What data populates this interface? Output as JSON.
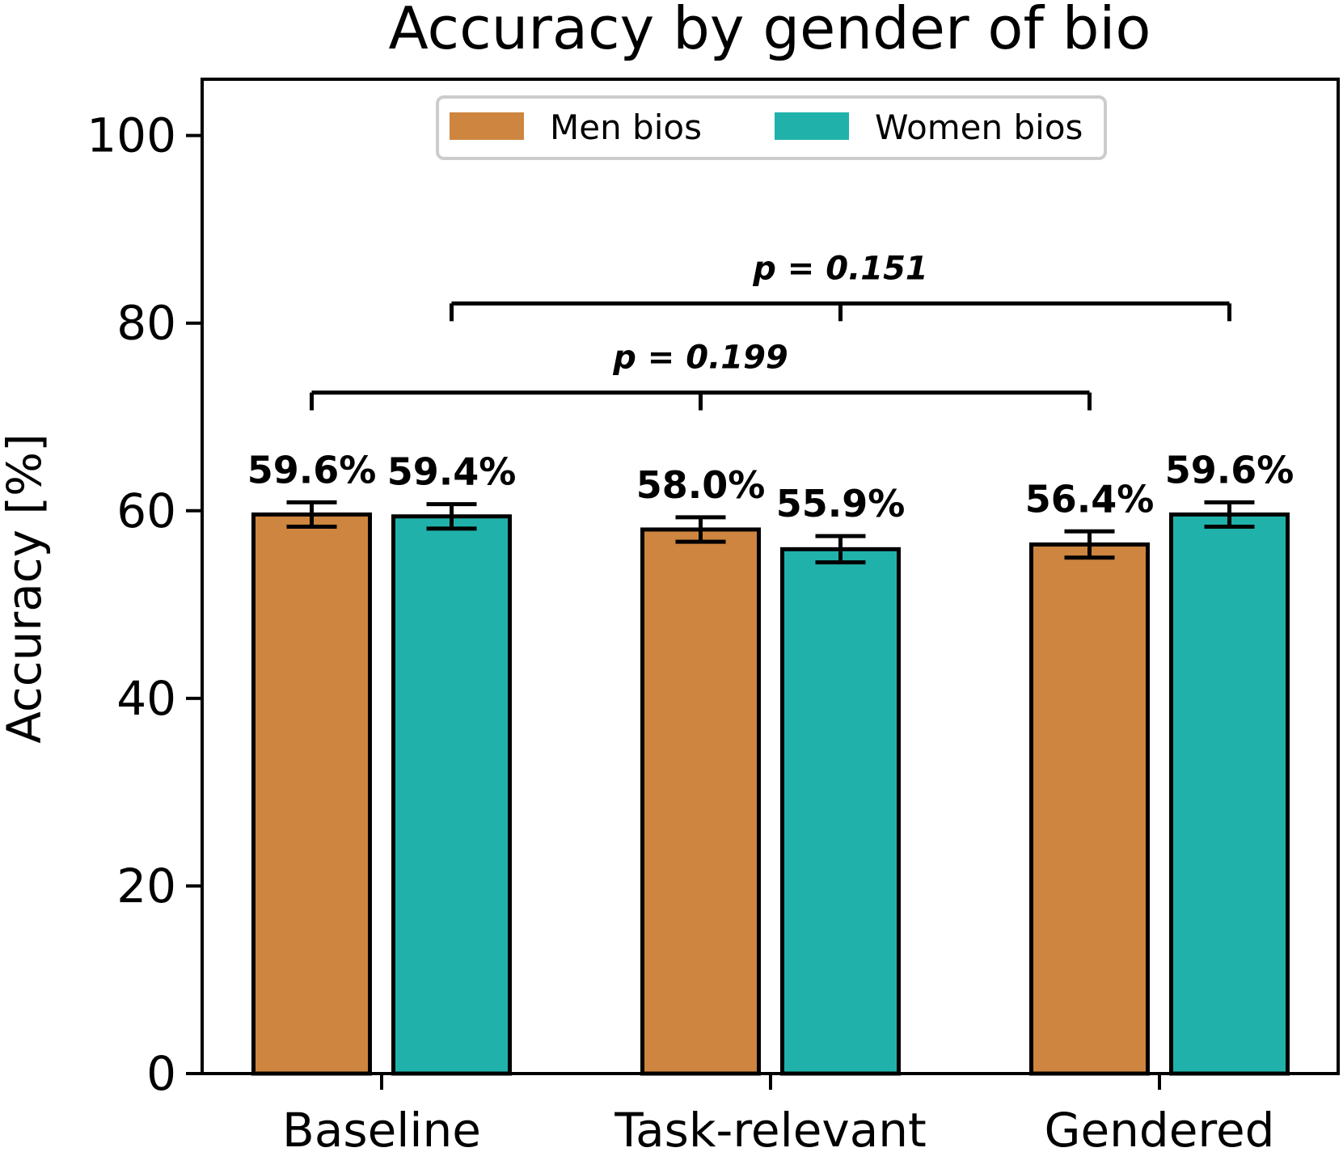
{
  "chart_data": {
    "type": "bar",
    "title": "Accuracy by gender of bio",
    "xlabel": "",
    "ylabel": "Accuracy [%]",
    "ylim": [
      0,
      106
    ],
    "yticks": [
      0,
      20,
      40,
      60,
      80,
      100
    ],
    "grid": false,
    "categories": [
      "Baseline",
      "Task-relevant",
      "Gendered"
    ],
    "series": [
      {
        "name": "Men bios",
        "color": "#CD853F",
        "values": [
          59.6,
          58.0,
          56.4
        ],
        "errors": [
          1.3,
          1.3,
          1.4
        ],
        "labels": [
          "59.6%",
          "58.0%",
          "56.4%"
        ]
      },
      {
        "name": "Women bios",
        "color": "#20B2AA",
        "values": [
          59.4,
          55.9,
          59.6
        ],
        "errors": [
          1.3,
          1.4,
          1.3
        ],
        "labels": [
          "59.4%",
          "55.9%",
          "59.6%"
        ]
      }
    ],
    "legend": {
      "position": "top-center",
      "entries": [
        "Men bios",
        "Women bios"
      ]
    },
    "annotations": [
      {
        "text": "p = 0.199",
        "from_category": 0,
        "from_series": 0,
        "to_category": 2,
        "to_series": 0,
        "level": 72.6
      },
      {
        "text": "p = 0.151",
        "from_category": 0,
        "from_series": 1,
        "to_category": 2,
        "to_series": 1,
        "level": 82.1
      }
    ]
  }
}
